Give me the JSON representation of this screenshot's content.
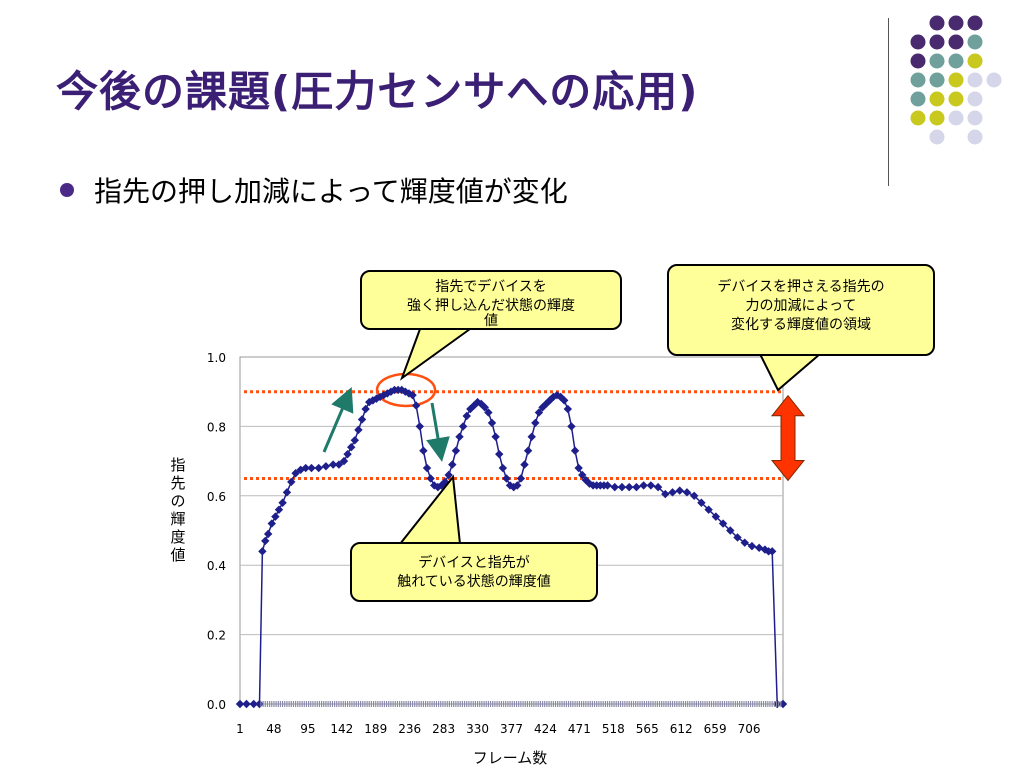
{
  "slide": {
    "title": "今後の課題(圧力センサへの応用)",
    "bullet": "指先の押し加減によって輝度値が変化"
  },
  "callouts": {
    "strong_press": [
      "指先でデバイスを",
      "強く押し込んだ状態の輝度",
      "値"
    ],
    "range": [
      "デバイスを押さえる指先の",
      "力の加減によって",
      "変化する輝度値の領域"
    ],
    "touching": [
      "デバイスと指先が",
      "触れている状態の輝度値"
    ]
  },
  "colors": {
    "title": "#3b1f74",
    "series": "#1f1f8c",
    "threshold_line": "#ff5010",
    "range_arrow": "#ff3300",
    "trend_arrow": "#1f7a6a",
    "callout_fill": "#ffff99",
    "deco_purple": "#4a2a6e",
    "deco_teal": "#6fa09c",
    "deco_yellow": "#c8c81e",
    "deco_lavender": "#d6d6ea"
  },
  "chart_data": {
    "type": "scatter",
    "xlabel": "フレーム数",
    "ylabel": "指先の輝度値",
    "ylim": [
      0,
      1.0
    ],
    "xlim": [
      1,
      753
    ],
    "yticks": [
      "0.0",
      "0.2",
      "0.4",
      "0.6",
      "0.8",
      "1.0"
    ],
    "xticks": [
      "1",
      "48",
      "95",
      "142",
      "189",
      "236",
      "283",
      "330",
      "377",
      "424",
      "471",
      "518",
      "565",
      "612",
      "659",
      "706"
    ],
    "threshold_upper": 0.9,
    "threshold_lower": 0.65,
    "series": [
      {
        "markers": "diamond",
        "x": [
          1,
          10,
          20,
          28,
          32,
          36,
          40,
          45,
          50,
          55,
          60,
          66,
          72,
          78,
          85,
          92,
          100,
          110,
          120,
          130,
          138,
          145,
          150,
          155,
          160,
          165,
          170,
          175,
          180,
          185,
          190,
          195,
          200,
          205,
          210,
          215,
          220,
          225,
          230,
          235,
          240,
          245,
          250,
          255,
          260,
          265,
          270,
          275,
          280,
          285,
          290,
          295,
          300,
          305,
          310,
          315,
          320,
          325,
          330,
          335,
          340,
          345,
          350,
          355,
          360,
          365,
          370,
          375,
          380,
          385,
          390,
          395,
          400,
          405,
          410,
          415,
          420,
          425,
          430,
          435,
          440,
          445,
          450,
          455,
          460,
          465,
          470,
          475,
          480,
          485,
          490,
          495,
          500,
          505,
          510,
          520,
          530,
          540,
          550,
          560,
          570,
          580,
          590,
          600,
          610,
          620,
          630,
          640,
          650,
          660,
          670,
          680,
          690,
          700,
          710,
          720,
          728,
          733,
          738,
          745,
          753
        ],
        "y": [
          0,
          0,
          0,
          0,
          0.44,
          0.47,
          0.49,
          0.52,
          0.54,
          0.56,
          0.58,
          0.61,
          0.64,
          0.665,
          0.675,
          0.68,
          0.68,
          0.68,
          0.685,
          0.69,
          0.69,
          0.7,
          0.72,
          0.74,
          0.76,
          0.79,
          0.82,
          0.85,
          0.87,
          0.875,
          0.88,
          0.885,
          0.89,
          0.895,
          0.9,
          0.905,
          0.905,
          0.905,
          0.9,
          0.895,
          0.89,
          0.86,
          0.8,
          0.73,
          0.68,
          0.65,
          0.63,
          0.625,
          0.63,
          0.64,
          0.66,
          0.69,
          0.73,
          0.77,
          0.8,
          0.83,
          0.85,
          0.86,
          0.87,
          0.865,
          0.855,
          0.84,
          0.81,
          0.77,
          0.72,
          0.68,
          0.65,
          0.63,
          0.625,
          0.63,
          0.65,
          0.69,
          0.73,
          0.77,
          0.81,
          0.84,
          0.855,
          0.865,
          0.875,
          0.885,
          0.89,
          0.885,
          0.875,
          0.85,
          0.8,
          0.73,
          0.68,
          0.66,
          0.645,
          0.635,
          0.63,
          0.63,
          0.63,
          0.63,
          0.63,
          0.625,
          0.625,
          0.625,
          0.625,
          0.63,
          0.63,
          0.625,
          0.605,
          0.61,
          0.615,
          0.61,
          0.6,
          0.58,
          0.56,
          0.54,
          0.52,
          0.5,
          0.48,
          0.465,
          0.455,
          0.45,
          0.445,
          0.44,
          0.44,
          0,
          0
        ]
      }
    ]
  }
}
